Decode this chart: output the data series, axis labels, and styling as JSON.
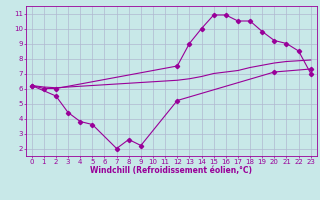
{
  "xlabel": "Windchill (Refroidissement éolien,°C)",
  "bg_color": "#c8e8e8",
  "line_color": "#990099",
  "grid_color": "#b0b8d0",
  "xlim": [
    -0.5,
    23.5
  ],
  "ylim": [
    1.5,
    11.5
  ],
  "yticks": [
    2,
    3,
    4,
    5,
    6,
    7,
    8,
    9,
    10,
    11
  ],
  "xticks": [
    0,
    1,
    2,
    3,
    4,
    5,
    6,
    7,
    8,
    9,
    10,
    11,
    12,
    13,
    14,
    15,
    16,
    17,
    18,
    19,
    20,
    21,
    22,
    23
  ],
  "curve1_x": [
    0,
    1,
    2,
    12,
    13,
    14,
    15,
    16,
    17,
    18,
    19,
    20,
    21,
    22,
    23
  ],
  "curve1_y": [
    6.2,
    6.0,
    6.0,
    7.5,
    9.0,
    10.0,
    10.9,
    10.9,
    10.5,
    10.5,
    9.8,
    9.2,
    9.0,
    8.5,
    7.0
  ],
  "curve2_x": [
    0,
    1,
    2,
    3,
    4,
    5,
    6,
    7,
    8,
    9,
    10,
    11,
    12,
    13,
    14,
    15,
    16,
    17,
    18,
    19,
    20,
    21,
    22,
    23
  ],
  "curve2_y": [
    6.2,
    6.1,
    6.05,
    6.1,
    6.15,
    6.2,
    6.25,
    6.3,
    6.35,
    6.4,
    6.45,
    6.5,
    6.55,
    6.65,
    6.8,
    7.0,
    7.1,
    7.2,
    7.4,
    7.55,
    7.7,
    7.8,
    7.85,
    7.9
  ],
  "curve3_x": [
    0,
    2,
    3,
    4,
    5,
    7,
    8,
    9,
    12,
    20,
    23
  ],
  "curve3_y": [
    6.2,
    5.5,
    4.4,
    3.8,
    3.6,
    2.0,
    2.6,
    2.2,
    5.2,
    7.1,
    7.3
  ],
  "tick_color": "#990099",
  "xlabel_color": "#990099",
  "tick_fontsize": 5.0,
  "xlabel_fontsize": 5.5
}
